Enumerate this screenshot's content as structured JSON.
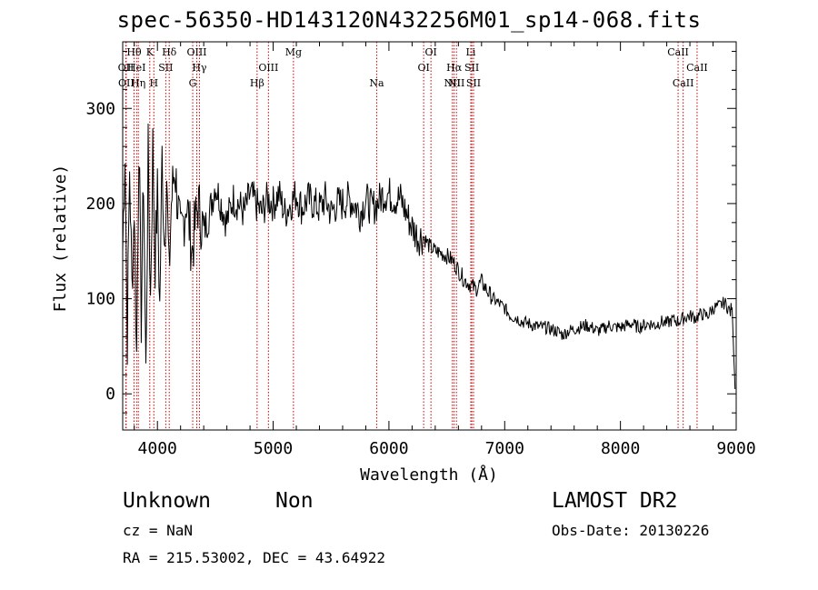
{
  "title": "spec-56350-HD143120N432256M01_sp14-068.fits",
  "info": {
    "obj_class": "Unknown",
    "obj_subclass": "Non",
    "survey": "LAMOST DR2",
    "cz": "cz = NaN",
    "obs_date": "Obs-Date: 20130226",
    "radec": "RA = 215.53002, DEC =  43.64922"
  },
  "chart_data": {
    "type": "line",
    "xlabel": "Wavelength (Å)",
    "ylabel": "Flux (relative)",
    "xlim": [
      3700,
      9000
    ],
    "ylim": [
      -38,
      370
    ],
    "xticks": [
      4000,
      5000,
      6000,
      7000,
      8000,
      9000
    ],
    "yticks": [
      0,
      100,
      200,
      300
    ],
    "line_color": "#000000",
    "marker_color": "#cc0000",
    "series": [
      {
        "x": [
          3700,
          3720,
          3740,
          3760,
          3780,
          3800,
          3820,
          3840,
          3860,
          3880,
          3900,
          3920,
          3940,
          3960,
          3980,
          4000,
          4020,
          4040,
          4060,
          4080,
          4100,
          4120,
          4150,
          4200,
          4250,
          4300,
          4350,
          4400,
          4450,
          4500,
          4550,
          4600,
          4650,
          4700,
          4750,
          4800,
          4850,
          4900,
          4950,
          5000,
          5050,
          5100,
          5150,
          5200,
          5250,
          5300,
          5350,
          5400,
          5450,
          5500,
          5550,
          5600,
          5650,
          5700,
          5750,
          5800,
          5850,
          5900,
          5950,
          6000,
          6050,
          6100,
          6150,
          6200,
          6250,
          6300,
          6350,
          6400,
          6450,
          6500,
          6550,
          6600,
          6650,
          6700,
          6750,
          6800,
          6850,
          6900,
          6950,
          7000,
          7050,
          7100,
          7150,
          7200,
          7250,
          7300,
          7350,
          7400,
          7450,
          7500,
          7550,
          7600,
          7650,
          7700,
          7750,
          7800,
          7850,
          7900,
          7950,
          8000,
          8050,
          8100,
          8150,
          8200,
          8250,
          8300,
          8350,
          8400,
          8450,
          8500,
          8550,
          8600,
          8650,
          8700,
          8750,
          8800,
          8850,
          8900,
          8950,
          8960,
          8970,
          8980,
          8990
        ],
        "y": [
          150,
          260,
          60,
          240,
          110,
          200,
          40,
          270,
          80,
          230,
          20,
          250,
          100,
          260,
          140,
          210,
          90,
          250,
          160,
          230,
          120,
          200,
          240,
          160,
          205,
          150,
          200,
          170,
          190,
          220,
          200,
          180,
          205,
          200,
          190,
          210,
          200,
          190,
          205,
          200,
          210,
          190,
          200,
          210,
          195,
          205,
          200,
          195,
          205,
          190,
          200,
          200,
          205,
          200,
          190,
          205,
          195,
          200,
          210,
          210,
          205,
          205,
          190,
          175,
          165,
          165,
          155,
          150,
          148,
          145,
          140,
          130,
          120,
          115,
          110,
          118,
          108,
          100,
          95,
          90,
          82,
          80,
          76,
          74,
          72,
          70,
          70,
          68,
          66,
          62,
          66,
          68,
          70,
          72,
          70,
          66,
          68,
          72,
          70,
          70,
          72,
          74,
          70,
          72,
          74,
          72,
          76,
          74,
          78,
          76,
          80,
          82,
          80,
          84,
          82,
          90,
          92,
          96,
          86,
          92,
          78,
          40,
          5
        ]
      }
    ],
    "lines": [
      {
        "name": "OII",
        "x": 3727,
        "row": 1
      },
      {
        "name": "OII",
        "x": 3730,
        "row": 2
      },
      {
        "name": "Hθ",
        "x": 3798,
        "row": 0
      },
      {
        "name": "HeI",
        "x": 3820,
        "row": 1
      },
      {
        "name": "Hη",
        "x": 3835,
        "row": 2
      },
      {
        "name": "K",
        "x": 3934,
        "row": 0
      },
      {
        "name": "H",
        "x": 3969,
        "row": 2
      },
      {
        "name": "SII",
        "x": 4072,
        "row": 1
      },
      {
        "name": "Hδ",
        "x": 4102,
        "row": 0
      },
      {
        "name": "G",
        "x": 4305,
        "row": 2
      },
      {
        "name": "OIII",
        "x": 4340,
        "row": 0
      },
      {
        "name": "Hγ",
        "x": 4363,
        "row": 1
      },
      {
        "name": "Hβ",
        "x": 4861,
        "row": 2
      },
      {
        "name": "OIII",
        "x": 4959,
        "row": 1
      },
      {
        "name": "Mg",
        "x": 5175,
        "row": 0
      },
      {
        "name": "Na",
        "x": 5894,
        "row": 2
      },
      {
        "name": "OI",
        "x": 6300,
        "row": 1
      },
      {
        "name": "OI",
        "x": 6363,
        "row": 0
      },
      {
        "name": "NII",
        "x": 6548,
        "row": 2
      },
      {
        "name": "Hα",
        "x": 6563,
        "row": 1
      },
      {
        "name": "NII",
        "x": 6583,
        "row": 2
      },
      {
        "name": "Li",
        "x": 6707,
        "row": 0
      },
      {
        "name": "SII",
        "x": 6716,
        "row": 1
      },
      {
        "name": "SII",
        "x": 6731,
        "row": 2
      },
      {
        "name": "CaII",
        "x": 8498,
        "row": 0
      },
      {
        "name": "CaII",
        "x": 8542,
        "row": 2
      },
      {
        "name": "CaII",
        "x": 8662,
        "row": 1
      }
    ]
  }
}
